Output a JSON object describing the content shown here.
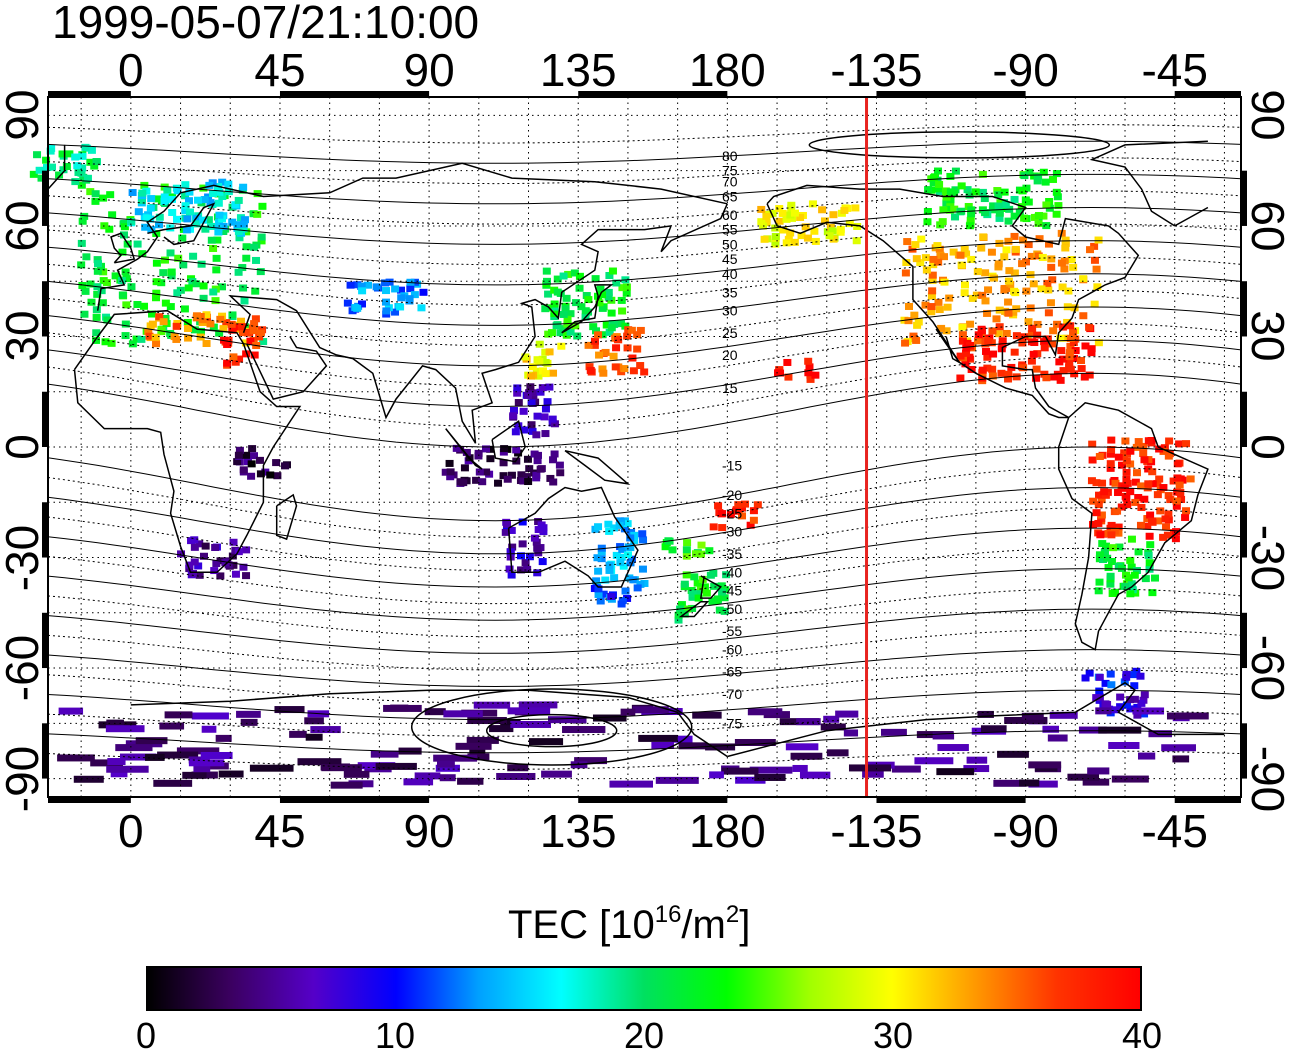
{
  "title": "1999-05-07/21:10:00",
  "axes": {
    "top_ticks": [
      "0",
      "45",
      "90",
      "135",
      "180",
      "-135",
      "-90",
      "-45"
    ],
    "bottom_ticks": [
      "0",
      "45",
      "90",
      "135",
      "180",
      "-135",
      "-90",
      "-45"
    ],
    "left_ticks": [
      "90",
      "60",
      "30",
      "0",
      "-30",
      "-60",
      "-90"
    ],
    "right_ticks": [
      "90",
      "60",
      "30",
      "0",
      "-30",
      "-60",
      "-90"
    ],
    "x_range_lon_east": [
      -25,
      335
    ],
    "y_range_lat": [
      -95,
      95
    ],
    "grid": "dotted, every 15 degrees"
  },
  "contour_labels": [
    "80",
    "75",
    "70",
    "65",
    "60",
    "55",
    "50",
    "45",
    "40",
    "35",
    "30",
    "25",
    "20",
    "15",
    "-15",
    "-20",
    "-25",
    "-30",
    "-35",
    "-40",
    "-45",
    "-50",
    "-55",
    "-60",
    "-65",
    "-70",
    "-75"
  ],
  "contour_label_lats": [
    79,
    75,
    72,
    68,
    63,
    59,
    55,
    51,
    47,
    42,
    37,
    31,
    25,
    16,
    -5,
    -13,
    -18,
    -23,
    -29,
    -34,
    -39,
    -44,
    -50,
    -55,
    -61,
    -67,
    -75
  ],
  "terminator": {
    "longitude_east": 222,
    "color": "#e8231f"
  },
  "colorbar": {
    "label_main": "TEC  [10",
    "label_exp": "16",
    "label_mid": "/m",
    "label_exp2": "2",
    "label_end": "]",
    "ticks": [
      "0",
      "10",
      "20",
      "30",
      "40"
    ],
    "range": [
      0,
      40
    ],
    "colors": [
      "#000000",
      "#3b0060",
      "#5500c8",
      "#0000ff",
      "#00a0ff",
      "#00ffff",
      "#00e060",
      "#00ff00",
      "#a0ff00",
      "#ffff00",
      "#ff9900",
      "#ff3300",
      "#ff0000"
    ]
  },
  "tec_regions": [
    {
      "name": "europe",
      "lon": [
        -15,
        40
      ],
      "lat": [
        28,
        72
      ],
      "tec": 22
    },
    {
      "name": "scandinavia",
      "lon": [
        0,
        35
      ],
      "lat": [
        58,
        72
      ],
      "tec": 16
    },
    {
      "name": "mediterranean",
      "lon": [
        5,
        40
      ],
      "lat": [
        28,
        36
      ],
      "tec": 34
    },
    {
      "name": "north-africa-east",
      "lon": [
        28,
        38
      ],
      "lat": [
        22,
        34
      ],
      "tec": 38
    },
    {
      "name": "central-asia",
      "lon": [
        65,
        90
      ],
      "lat": [
        36,
        45
      ],
      "tec": 13
    },
    {
      "name": "japan",
      "lon": [
        125,
        150
      ],
      "lat": [
        30,
        48
      ],
      "tec": 22
    },
    {
      "name": "taiwan-south-china",
      "lon": [
        118,
        130
      ],
      "lat": [
        18,
        28
      ],
      "tec": 30
    },
    {
      "name": "pacific-nw-islands",
      "lon": [
        138,
        155
      ],
      "lat": [
        20,
        32
      ],
      "tec": 36
    },
    {
      "name": "philippines",
      "lon": [
        115,
        128
      ],
      "lat": [
        3,
        18
      ],
      "tec": 6
    },
    {
      "name": "indonesia",
      "lon": [
        95,
        130
      ],
      "lat": [
        -10,
        0
      ],
      "tec": 3
    },
    {
      "name": "east-africa",
      "lon": [
        32,
        48
      ],
      "lat": [
        -8,
        0
      ],
      "tec": 3
    },
    {
      "name": "south-africa",
      "lon": [
        15,
        35
      ],
      "lat": [
        -35,
        -25
      ],
      "tec": 5
    },
    {
      "name": "western-australia",
      "lon": [
        113,
        125
      ],
      "lat": [
        -35,
        -20
      ],
      "tec": 7
    },
    {
      "name": "east-australia",
      "lon": [
        140,
        155
      ],
      "lat": [
        -40,
        -20
      ],
      "tec": 14
    },
    {
      "name": "tasmania",
      "lon": [
        140,
        150
      ],
      "lat": [
        -45,
        -38
      ],
      "tec": 11
    },
    {
      "name": "new-zealand",
      "lon": [
        165,
        180
      ],
      "lat": [
        -48,
        -34
      ],
      "tec": 22
    },
    {
      "name": "fiji",
      "lon": [
        175,
        190
      ],
      "lat": [
        -22,
        -15
      ],
      "tec": 38
    },
    {
      "name": "south-pacific",
      "lon": [
        160,
        175
      ],
      "lat": [
        -30,
        -25
      ],
      "tec": 23
    },
    {
      "name": "hawaii",
      "lon": [
        195,
        207
      ],
      "lat": [
        18,
        24
      ],
      "tec": 40
    },
    {
      "name": "alaska",
      "lon": [
        190,
        220
      ],
      "lat": [
        55,
        66
      ],
      "tec": 30
    },
    {
      "name": "north-america",
      "lon": [
        232,
        293
      ],
      "lat": [
        28,
        58
      ],
      "tec": 33
    },
    {
      "name": "usa-south",
      "lon": [
        250,
        290
      ],
      "lat": [
        18,
        33
      ],
      "tec": 38
    },
    {
      "name": "canada-north",
      "lon": [
        240,
        280
      ],
      "lat": [
        60,
        75
      ],
      "tec": 22
    },
    {
      "name": "brazil",
      "lon": [
        290,
        320
      ],
      "lat": [
        -25,
        2
      ],
      "tec": 38
    },
    {
      "name": "argentina",
      "lon": [
        292,
        310
      ],
      "lat": [
        -40,
        -25
      ],
      "tec": 22
    },
    {
      "name": "patagonia",
      "lon": [
        288,
        305
      ],
      "lat": [
        -65,
        -60
      ],
      "tec": 10
    },
    {
      "name": "antarctic-peninsula",
      "lon": [
        290,
        310
      ],
      "lat": [
        -73,
        -66
      ],
      "tec": 8
    },
    {
      "name": "antarctica",
      "lon": [
        -20,
        320
      ],
      "lat": [
        -92,
        -70
      ],
      "tec": 4
    },
    {
      "name": "greenland",
      "lon": [
        -30,
        -10
      ],
      "lat": [
        72,
        82
      ],
      "tec": 20
    }
  ]
}
